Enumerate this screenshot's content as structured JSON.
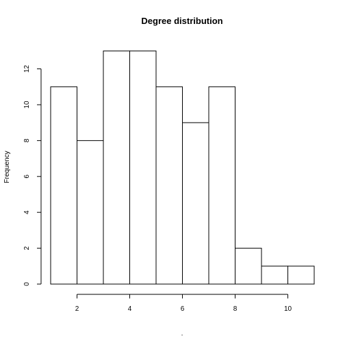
{
  "chart_data": {
    "type": "bar",
    "title": "Degree distribution",
    "xlabel": ".",
    "ylabel": "Frequency",
    "bins": [
      [
        1,
        2
      ],
      [
        2,
        3
      ],
      [
        3,
        4
      ],
      [
        4,
        5
      ],
      [
        5,
        6
      ],
      [
        6,
        7
      ],
      [
        7,
        8
      ],
      [
        8,
        9
      ],
      [
        9,
        10
      ],
      [
        10,
        11
      ]
    ],
    "values": [
      11,
      8,
      13,
      13,
      11,
      9,
      11,
      2,
      1,
      1
    ],
    "xlim": [
      1,
      11
    ],
    "ylim": [
      0,
      13
    ],
    "xticks": [
      2,
      4,
      6,
      8,
      10
    ],
    "yticks": [
      0,
      2,
      4,
      6,
      8,
      10,
      12
    ],
    "grid": false,
    "colors": {
      "bar_fill": "#ffffff",
      "bar_stroke": "#000000"
    }
  }
}
